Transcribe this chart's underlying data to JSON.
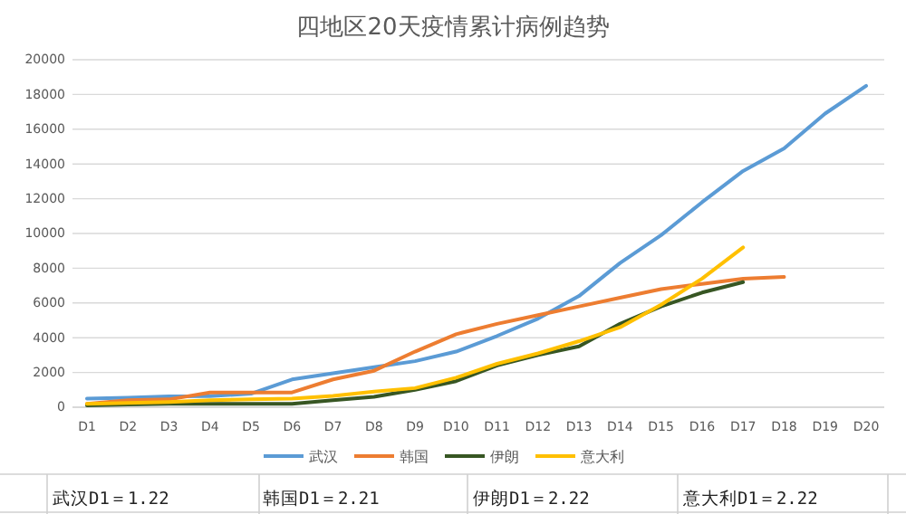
{
  "chart_data": {
    "type": "line",
    "title": "四地区20天疫情累计病例趋势",
    "categories": [
      "D1",
      "D2",
      "D3",
      "D4",
      "D5",
      "D6",
      "D7",
      "D8",
      "D9",
      "D10",
      "D11",
      "D12",
      "D13",
      "D14",
      "D15",
      "D16",
      "D17",
      "D18",
      "D19",
      "D20"
    ],
    "series": [
      {
        "name": "武汉",
        "color": "#5b9bd5",
        "values": [
          495,
          550,
          620,
          640,
          780,
          1600,
          1950,
          2300,
          2650,
          3200,
          4100,
          5100,
          6400,
          8300,
          9900,
          11800,
          13600,
          14900,
          16900,
          18500
        ]
      },
      {
        "name": "韩国",
        "color": "#ed7d31",
        "values": [
          200,
          400,
          450,
          850,
          850,
          850,
          1600,
          2100,
          3200,
          4200,
          4800,
          5300,
          5800,
          6300,
          6800,
          7100,
          7400,
          7500,
          null,
          null
        ]
      },
      {
        "name": "伊朗",
        "color": "#375623",
        "values": [
          100,
          150,
          200,
          200,
          200,
          200,
          400,
          600,
          1000,
          1500,
          2400,
          3000,
          3500,
          4800,
          5800,
          6600,
          7200,
          null,
          null,
          null
        ]
      },
      {
        "name": "意大利",
        "color": "#ffc000",
        "values": [
          200,
          250,
          300,
          400,
          450,
          500,
          650,
          900,
          1100,
          1700,
          2500,
          3100,
          3800,
          4600,
          5900,
          7400,
          9200,
          null,
          null,
          null
        ]
      }
    ],
    "ylim": [
      0,
      20000
    ],
    "yticks": [
      0,
      2000,
      4000,
      6000,
      8000,
      10000,
      12000,
      14000,
      16000,
      18000,
      20000
    ],
    "grid": "y",
    "legend": "bottom",
    "marker": "none",
    "line_style": "solid",
    "annotations": [
      "武汉D1＝1.22",
      "韩国D1＝2.21",
      "伊朗D1＝2.22",
      "意大利D1＝2.22"
    ]
  }
}
